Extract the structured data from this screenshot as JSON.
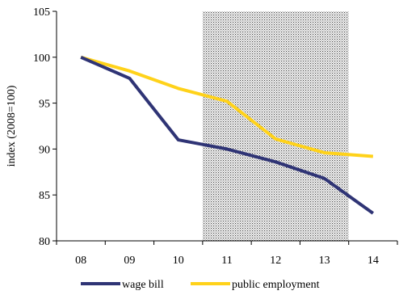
{
  "chart_data": {
    "type": "line",
    "title": "",
    "xlabel": "",
    "ylabel": "index (2008=100)",
    "categories": [
      "08",
      "09",
      "10",
      "11",
      "12",
      "13",
      "14"
    ],
    "ylim": [
      80,
      105
    ],
    "yticks": [
      80,
      85,
      90,
      95,
      100,
      105
    ],
    "grid": false,
    "legend_position": "bottom",
    "shaded_region": {
      "from_category": "10",
      "to_category": "13",
      "extends_half_step": true,
      "pattern": "dotted"
    },
    "series": [
      {
        "name": "wage bill",
        "color": "#2f3475",
        "values": [
          100,
          97.7,
          91.0,
          90.0,
          88.6,
          86.8,
          83.0
        ]
      },
      {
        "name": "public employment",
        "color": "#ffd21a",
        "values": [
          100,
          98.5,
          96.6,
          95.2,
          91.1,
          89.6,
          89.2
        ]
      }
    ]
  }
}
